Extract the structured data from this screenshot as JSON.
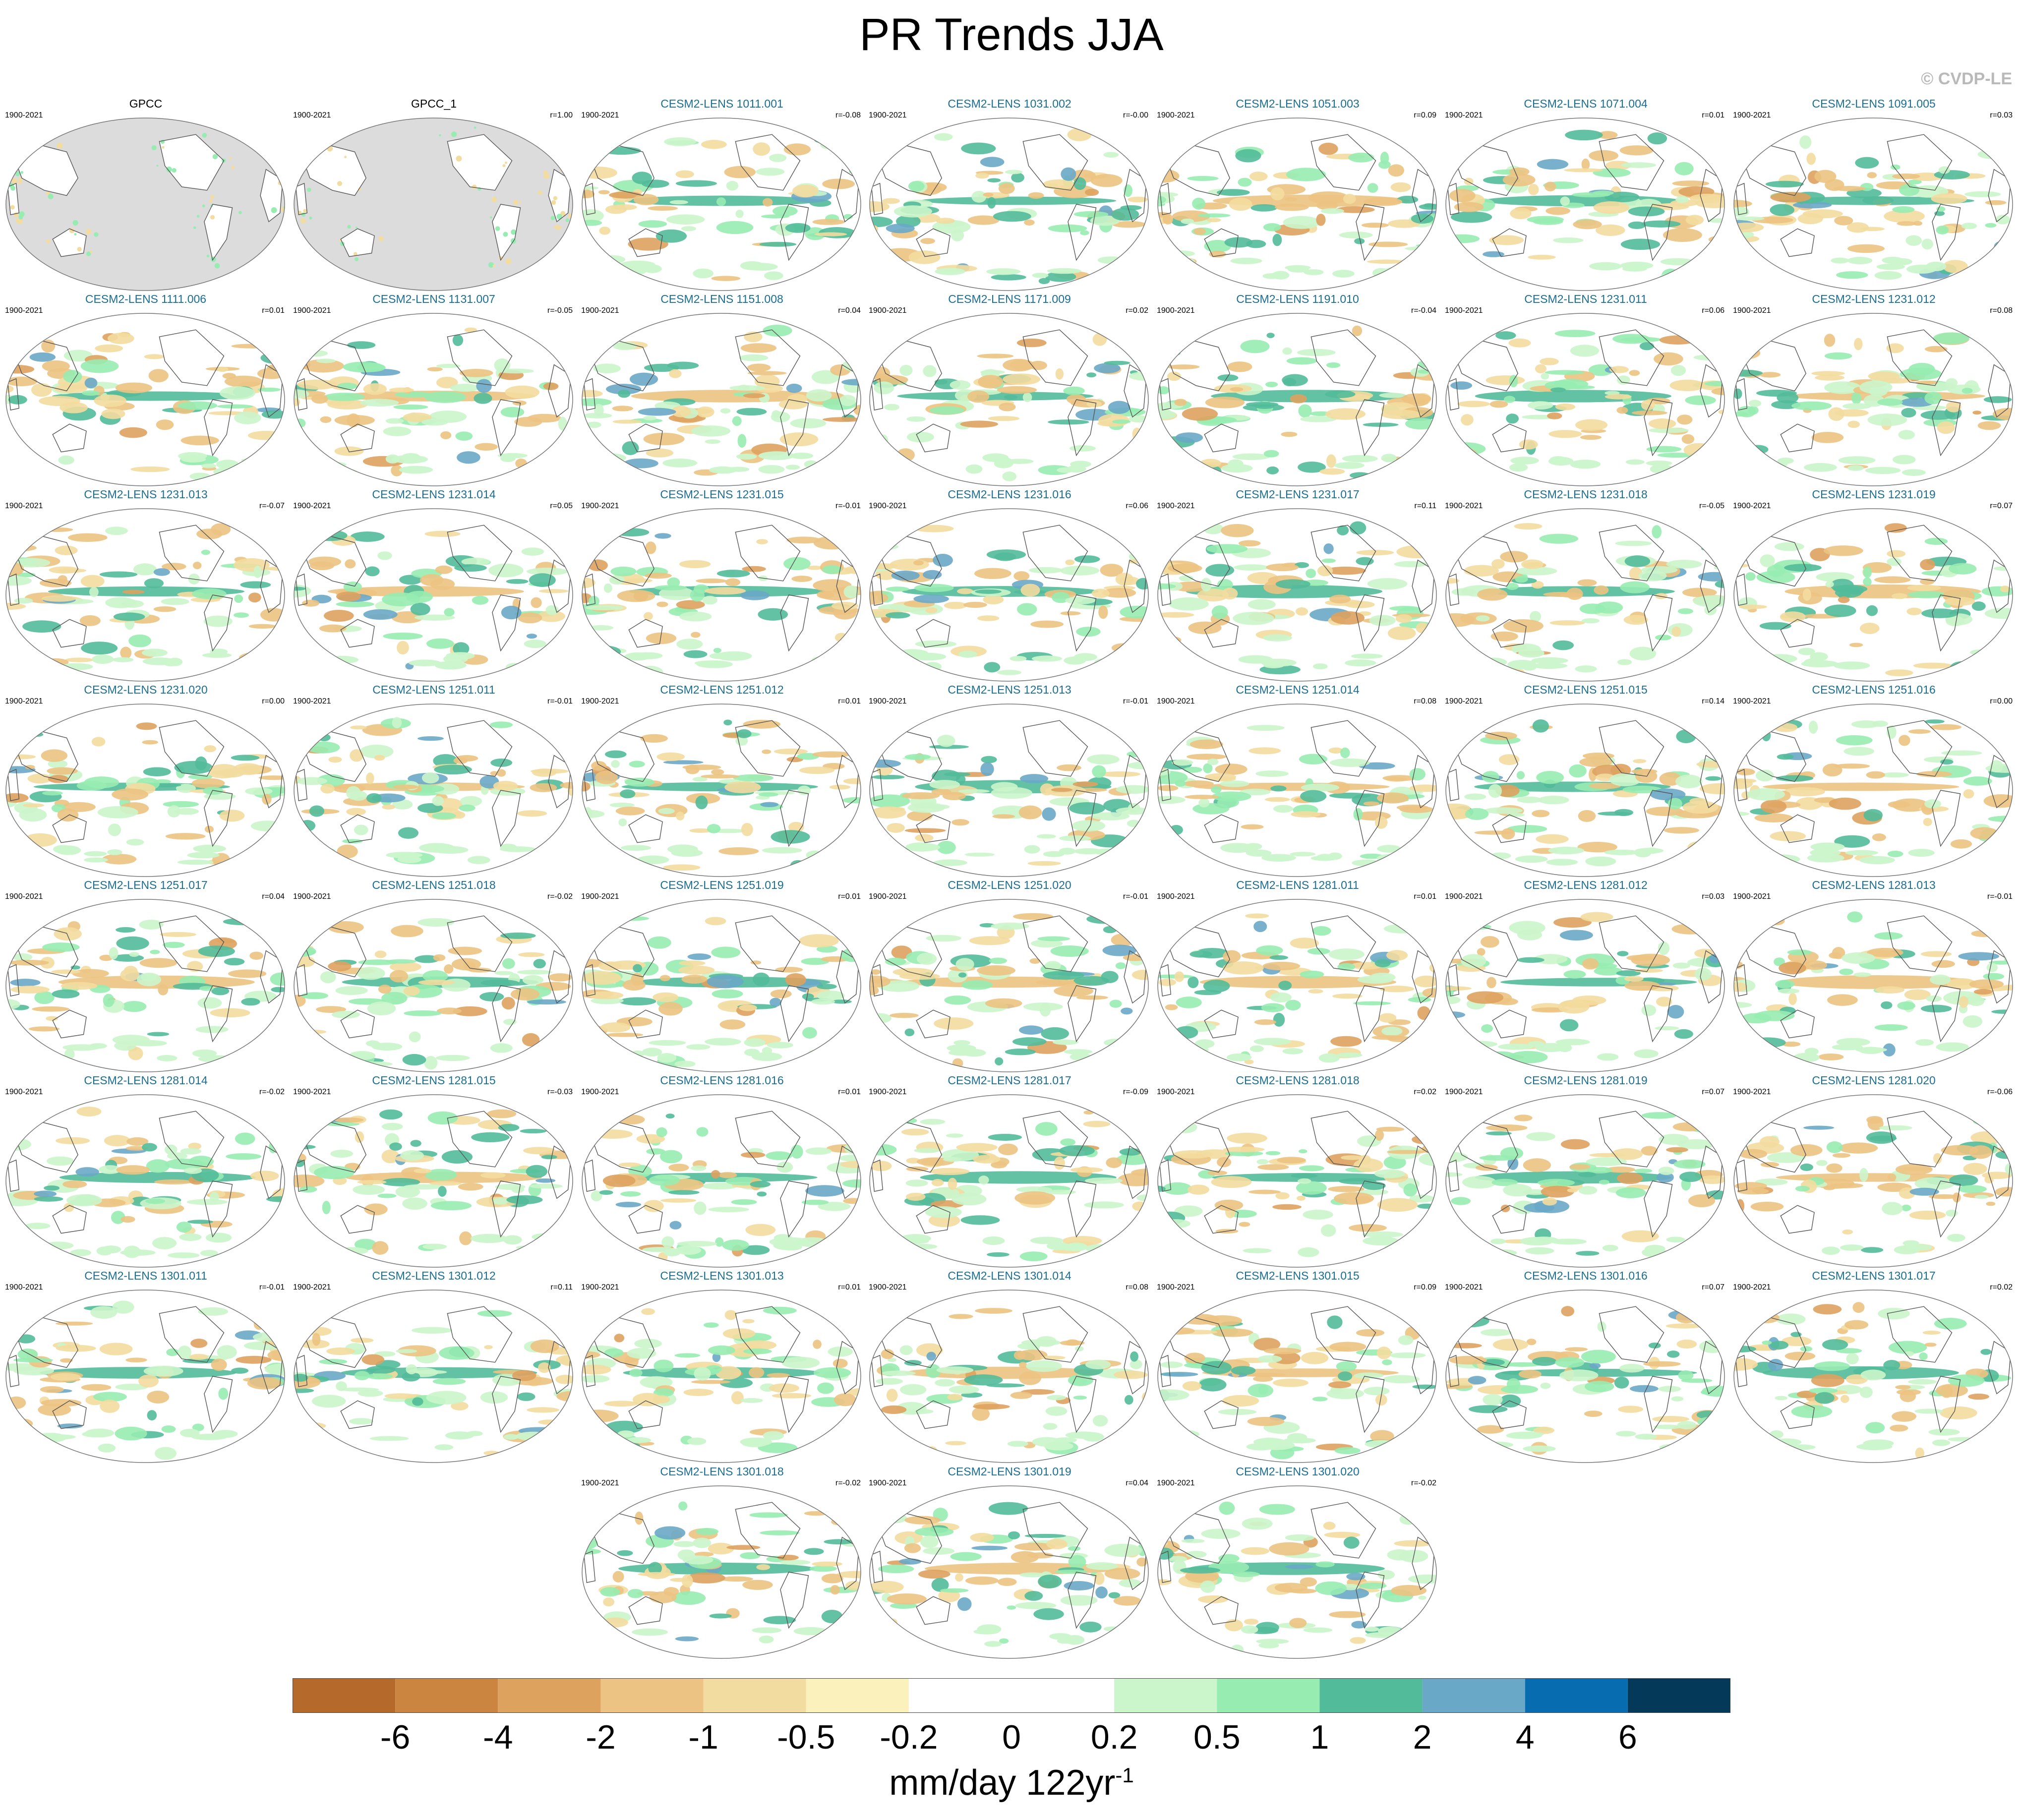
{
  "title": "PR Trends JJA",
  "credit": "© CVDP-LE",
  "period": "1900-2021",
  "colors": {
    "ocean_obs": "#dcdcdc",
    "member_name": "#1a6e93",
    "coast": "#555555"
  },
  "chart_data": {
    "type": "heatmap",
    "projection": "robinson-like global maps, Pacific-centered",
    "panels": [
      {
        "name": "GPCC",
        "r": "",
        "obs": true
      },
      {
        "name": "GPCC_1",
        "r": "r=1.00",
        "obs": true
      },
      {
        "name": "CESM2-LENS 1011.001",
        "r": "r=-0.08"
      },
      {
        "name": "CESM2-LENS 1031.002",
        "r": "r=-0.00"
      },
      {
        "name": "CESM2-LENS 1051.003",
        "r": "r=0.09"
      },
      {
        "name": "CESM2-LENS 1071.004",
        "r": "r=0.01"
      },
      {
        "name": "CESM2-LENS 1091.005",
        "r": "r=0.03"
      },
      {
        "name": "CESM2-LENS 1111.006",
        "r": "r=0.01"
      },
      {
        "name": "CESM2-LENS 1131.007",
        "r": "r=-0.05"
      },
      {
        "name": "CESM2-LENS 1151.008",
        "r": "r=0.04"
      },
      {
        "name": "CESM2-LENS 1171.009",
        "r": "r=0.02"
      },
      {
        "name": "CESM2-LENS 1191.010",
        "r": "r=-0.04"
      },
      {
        "name": "CESM2-LENS 1231.011",
        "r": "r=0.06"
      },
      {
        "name": "CESM2-LENS 1231.012",
        "r": "r=0.08"
      },
      {
        "name": "CESM2-LENS 1231.013",
        "r": "r=-0.07"
      },
      {
        "name": "CESM2-LENS 1231.014",
        "r": "r=0.05"
      },
      {
        "name": "CESM2-LENS 1231.015",
        "r": "r=-0.01"
      },
      {
        "name": "CESM2-LENS 1231.016",
        "r": "r=0.06"
      },
      {
        "name": "CESM2-LENS 1231.017",
        "r": "r=0.11"
      },
      {
        "name": "CESM2-LENS 1231.018",
        "r": "r=-0.05"
      },
      {
        "name": "CESM2-LENS 1231.019",
        "r": "r=0.07"
      },
      {
        "name": "CESM2-LENS 1231.020",
        "r": "r=0.00"
      },
      {
        "name": "CESM2-LENS 1251.011",
        "r": "r=-0.01"
      },
      {
        "name": "CESM2-LENS 1251.012",
        "r": "r=0.01"
      },
      {
        "name": "CESM2-LENS 1251.013",
        "r": "r=-0.01"
      },
      {
        "name": "CESM2-LENS 1251.014",
        "r": "r=0.08"
      },
      {
        "name": "CESM2-LENS 1251.015",
        "r": "r=0.14"
      },
      {
        "name": "CESM2-LENS 1251.016",
        "r": "r=0.00"
      },
      {
        "name": "CESM2-LENS 1251.017",
        "r": "r=0.04"
      },
      {
        "name": "CESM2-LENS 1251.018",
        "r": "r=-0.02"
      },
      {
        "name": "CESM2-LENS 1251.019",
        "r": "r=0.01"
      },
      {
        "name": "CESM2-LENS 1251.020",
        "r": "r=-0.01"
      },
      {
        "name": "CESM2-LENS 1281.011",
        "r": "r=0.01"
      },
      {
        "name": "CESM2-LENS 1281.012",
        "r": "r=0.03"
      },
      {
        "name": "CESM2-LENS 1281.013",
        "r": "r=-0.01"
      },
      {
        "name": "CESM2-LENS 1281.014",
        "r": "r=-0.02"
      },
      {
        "name": "CESM2-LENS 1281.015",
        "r": "r=-0.03"
      },
      {
        "name": "CESM2-LENS 1281.016",
        "r": "r=0.01"
      },
      {
        "name": "CESM2-LENS 1281.017",
        "r": "r=-0.09"
      },
      {
        "name": "CESM2-LENS 1281.018",
        "r": "r=0.02"
      },
      {
        "name": "CESM2-LENS 1281.019",
        "r": "r=0.07"
      },
      {
        "name": "CESM2-LENS 1281.020",
        "r": "r=-0.06"
      },
      {
        "name": "CESM2-LENS 1301.011",
        "r": "r=-0.01"
      },
      {
        "name": "CESM2-LENS 1301.012",
        "r": "r=0.11"
      },
      {
        "name": "CESM2-LENS 1301.013",
        "r": "r=0.01"
      },
      {
        "name": "CESM2-LENS 1301.014",
        "r": "r=0.08"
      },
      {
        "name": "CESM2-LENS 1301.015",
        "r": "r=0.09"
      },
      {
        "name": "CESM2-LENS 1301.016",
        "r": "r=0.07"
      },
      {
        "name": "CESM2-LENS 1301.017",
        "r": "r=0.02"
      },
      {
        "name": "CESM2-LENS 1301.018",
        "r": "r=-0.02"
      },
      {
        "name": "CESM2-LENS 1301.019",
        "r": "r=0.04"
      },
      {
        "name": "CESM2-LENS 1301.020",
        "r": "r=-0.02"
      }
    ],
    "colorbar": {
      "levels": [
        "-6",
        "-4",
        "-2",
        "-1",
        "-0.5",
        "-0.2",
        "0",
        "0.2",
        "0.5",
        "1",
        "2",
        "4",
        "6"
      ],
      "colors": [
        "#b5692a",
        "#cc8540",
        "#dea25f",
        "#ecc382",
        "#f3dc9f",
        "#fbf1bd",
        "#ffffff",
        "#ffffff",
        "#cbf5cb",
        "#97ecb1",
        "#52bb9a",
        "#6aa8c8",
        "#086db0",
        "#04395a"
      ],
      "units": "mm/day 122yr",
      "units_exp": "-1"
    }
  }
}
